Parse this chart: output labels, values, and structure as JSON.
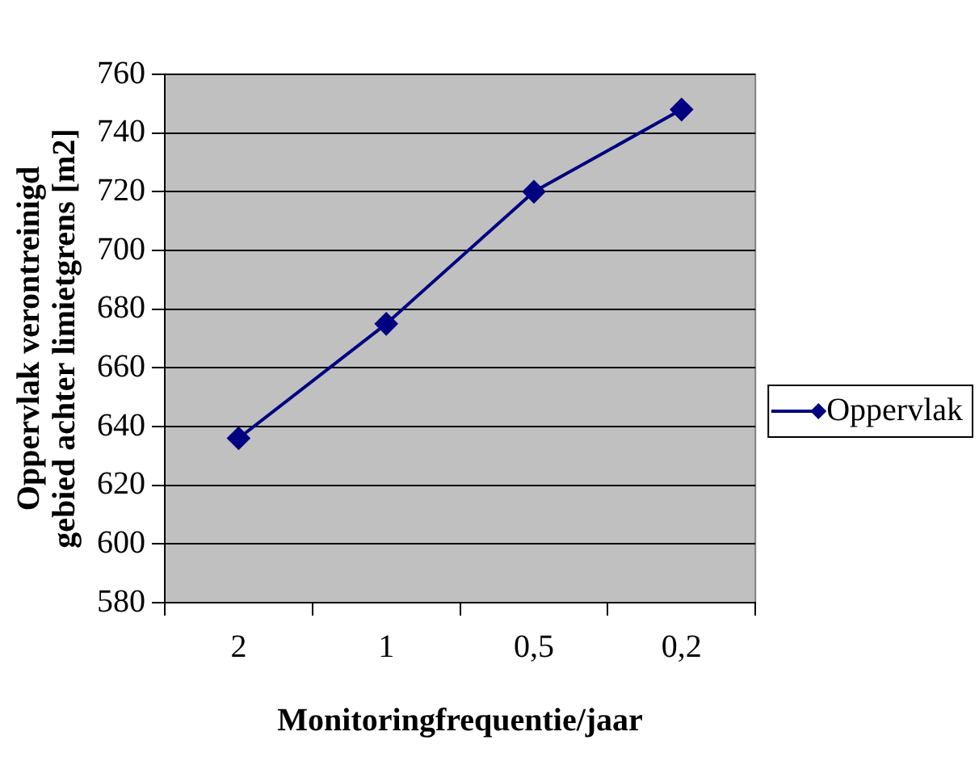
{
  "chart_data": {
    "type": "line",
    "xlabel": "Monitoringfrequentie/jaar",
    "ylabel": "Oppervlak verontreinigd gebied achter limietgrens [m2]",
    "categories": [
      "2",
      "1",
      "0,5",
      "0,2"
    ],
    "series": [
      {
        "name": "Oppervlak",
        "color": "#000080",
        "values": [
          636,
          675,
          720,
          748
        ]
      }
    ],
    "ylim": [
      580,
      760
    ],
    "yticks": [
      580,
      600,
      620,
      640,
      660,
      680,
      700,
      720,
      740,
      760
    ],
    "grid": "y",
    "legend": "right",
    "marker": "diamond",
    "line_style": "solid"
  }
}
